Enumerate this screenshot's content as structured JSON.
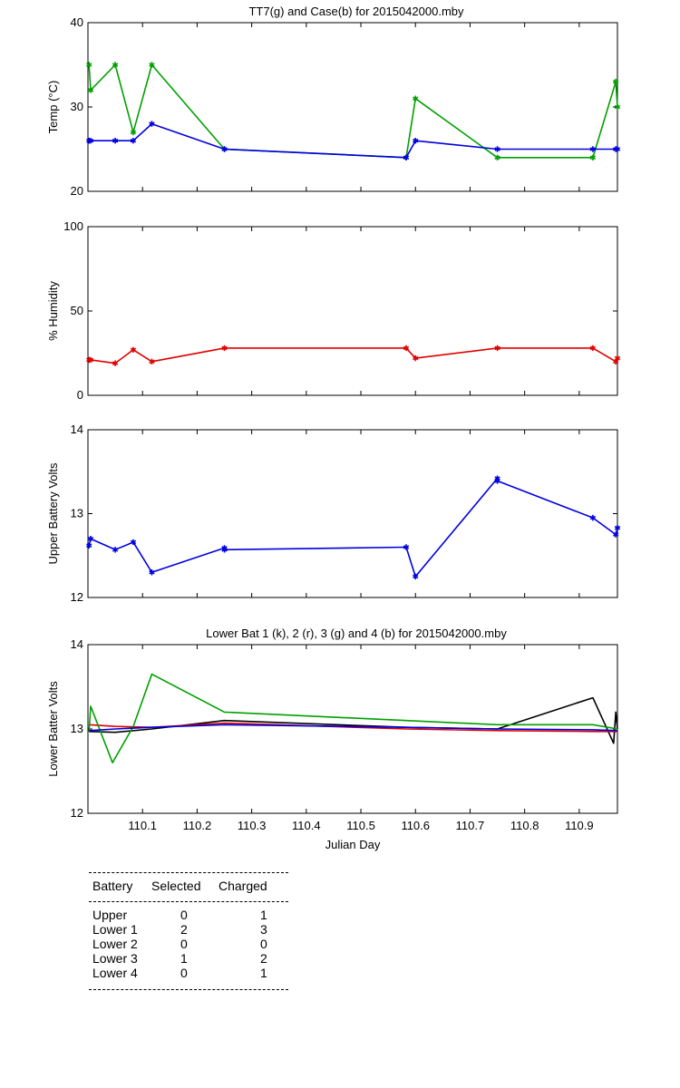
{
  "chart_data": [
    {
      "type": "line",
      "title": "TT7(g) and Case(b) for 2015042000.mby",
      "ylabel": "Temp  (°C)",
      "xlabel": "",
      "xlim": [
        110.0,
        110.97
      ],
      "ylim": [
        20,
        40
      ],
      "yticks": [
        20,
        30,
        40
      ],
      "markers": true,
      "series": [
        {
          "color": "#00a000",
          "x": [
            110.002,
            110.005,
            110.05,
            110.083,
            110.117,
            110.25,
            110.583,
            110.6,
            110.75,
            110.925,
            110.967,
            110.97
          ],
          "y": [
            35,
            32,
            35,
            27,
            35,
            25,
            24,
            31,
            24,
            24,
            33,
            30
          ]
        },
        {
          "color": "#0000e0",
          "x": [
            110.002,
            110.005,
            110.05,
            110.083,
            110.117,
            110.25,
            110.583,
            110.6,
            110.75,
            110.925,
            110.967,
            110.97
          ],
          "y": [
            26,
            26,
            26,
            26,
            28,
            25,
            24,
            26,
            25,
            25,
            25,
            25
          ]
        }
      ]
    },
    {
      "type": "line",
      "title": "",
      "ylabel": "% Humidity",
      "xlabel": "",
      "xlim": [
        110.0,
        110.97
      ],
      "ylim": [
        0,
        100
      ],
      "yticks": [
        0,
        50,
        100
      ],
      "markers": true,
      "series": [
        {
          "color": "#e00000",
          "x": [
            110.002,
            110.005,
            110.05,
            110.083,
            110.117,
            110.25,
            110.583,
            110.6,
            110.75,
            110.925,
            110.967,
            110.97
          ],
          "y": [
            21,
            21,
            19,
            27,
            20,
            28,
            28,
            22,
            28,
            28,
            20,
            22
          ]
        }
      ]
    },
    {
      "type": "line",
      "title": "",
      "ylabel": "Upper Battery Volts",
      "xlabel": "",
      "xlim": [
        110.0,
        110.97
      ],
      "ylim": [
        12,
        14
      ],
      "yticks": [
        12,
        13,
        14
      ],
      "markers": true,
      "series": [
        {
          "color": "#0000e0",
          "x": [
            110.002,
            110.005,
            110.05,
            110.083,
            110.117,
            110.25,
            110.25,
            110.583,
            110.6,
            110.75,
            110.75,
            110.925,
            110.967,
            110.97
          ],
          "y": [
            12.62,
            12.7,
            12.57,
            12.66,
            12.3,
            12.59,
            12.57,
            12.6,
            12.25,
            13.42,
            13.39,
            12.95,
            12.75,
            12.83
          ]
        }
      ]
    },
    {
      "type": "line",
      "title": "Lower Bat 1 (k), 2 (r), 3 (g) and 4 (b) for 2015042000.mby",
      "ylabel": "Lower Batter Volts",
      "xlabel": "Julian Day",
      "xlim": [
        110.0,
        110.97
      ],
      "ylim": [
        12,
        14
      ],
      "yticks": [
        12,
        13,
        14
      ],
      "xticks": [
        "110.1",
        "110.2",
        "110.3",
        "110.4",
        "110.5",
        "110.6",
        "110.7",
        "110.8",
        "110.9"
      ],
      "markers": false,
      "series": [
        {
          "color": "#000000",
          "x": [
            110.002,
            110.05,
            110.117,
            110.25,
            110.583,
            110.75,
            110.925,
            110.963,
            110.967,
            110.97
          ],
          "y": [
            12.97,
            12.96,
            13.0,
            13.1,
            13.02,
            13.0,
            13.37,
            12.83,
            13.2,
            13.0
          ]
        },
        {
          "color": "#e00000",
          "x": [
            110.002,
            110.05,
            110.117,
            110.25,
            110.583,
            110.75,
            110.925,
            110.97
          ],
          "y": [
            13.05,
            13.03,
            13.02,
            13.07,
            13.0,
            12.98,
            12.97,
            12.97
          ]
        },
        {
          "color": "#00a000",
          "x": [
            110.002,
            110.005,
            110.045,
            110.083,
            110.117,
            110.25,
            110.583,
            110.75,
            110.925,
            110.97
          ],
          "y": [
            12.97,
            13.27,
            12.6,
            13.03,
            13.65,
            13.2,
            13.1,
            13.05,
            13.05,
            13.0
          ]
        },
        {
          "color": "#0000e0",
          "x": [
            110.002,
            110.05,
            110.117,
            110.25,
            110.583,
            110.75,
            110.925,
            110.97
          ],
          "y": [
            12.98,
            13.0,
            13.02,
            13.05,
            13.02,
            13.0,
            12.99,
            12.98
          ]
        }
      ]
    }
  ],
  "battery_table": {
    "headers": [
      "Battery",
      "Selected",
      "Charged"
    ],
    "rows": [
      {
        "battery": "Upper",
        "selected": "0",
        "charged": "1"
      },
      {
        "battery": "Lower 1",
        "selected": "2",
        "charged": "3"
      },
      {
        "battery": "Lower 2",
        "selected": "0",
        "charged": "0"
      },
      {
        "battery": "Lower 3",
        "selected": "1",
        "charged": "2"
      },
      {
        "battery": "Lower 4",
        "selected": "0",
        "charged": "1"
      }
    ]
  }
}
